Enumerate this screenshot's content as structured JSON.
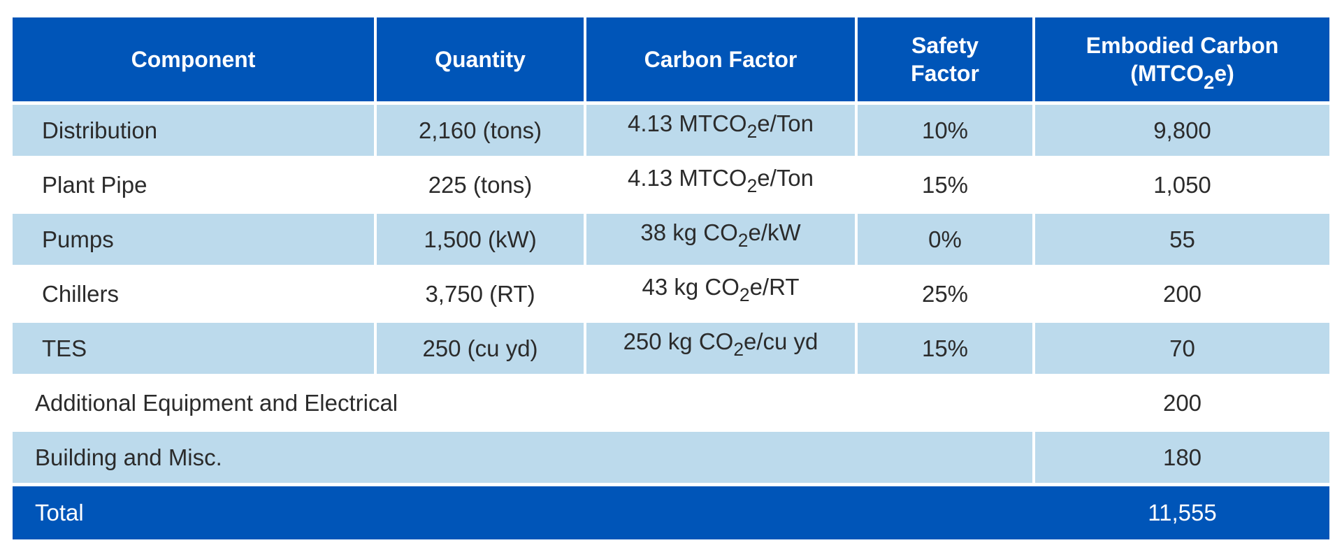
{
  "table": {
    "headers": {
      "component": "Component",
      "quantity": "Quantity",
      "carbon_factor": "Carbon Factor",
      "safety_line1": "Safety",
      "safety_line2": "Factor",
      "embodied_line1": "Embodied Carbon",
      "embodied_line2_pre": "(MTCO",
      "embodied_line2_sub": "2",
      "embodied_line2_post": "e)"
    },
    "rows": [
      {
        "component": "Distribution",
        "quantity": "2,160 (tons)",
        "factor_pre": "4.13 MTCO",
        "factor_sub": "2",
        "factor_post": "e/Ton",
        "safety": "10%",
        "embodied": "9,800"
      },
      {
        "component": "Plant Pipe",
        "quantity": "225 (tons)",
        "factor_pre": "4.13 MTCO",
        "factor_sub": "2",
        "factor_post": "e/Ton",
        "safety": "15%",
        "embodied": "1,050"
      },
      {
        "component": "Pumps",
        "quantity": "1,500 (kW)",
        "factor_pre": "38 kg CO",
        "factor_sub": "2",
        "factor_post": "e/kW",
        "safety": "0%",
        "embodied": "55"
      },
      {
        "component": "Chillers",
        "quantity": "3,750 (RT)",
        "factor_pre": "43 kg CO",
        "factor_sub": "2",
        "factor_post": "e/RT",
        "safety": "25%",
        "embodied": "200"
      },
      {
        "component": "TES",
        "quantity": "250 (cu yd)",
        "factor_pre": "250 kg CO",
        "factor_sub": "2",
        "factor_post": "e/cu yd",
        "safety": "15%",
        "embodied": "70"
      }
    ],
    "additional": {
      "label": "Additional Equipment and Electrical",
      "embodied": "200"
    },
    "building": {
      "label": "Building and Misc.",
      "embodied": "180"
    },
    "total": {
      "label": "Total",
      "embodied": "11,555"
    }
  }
}
